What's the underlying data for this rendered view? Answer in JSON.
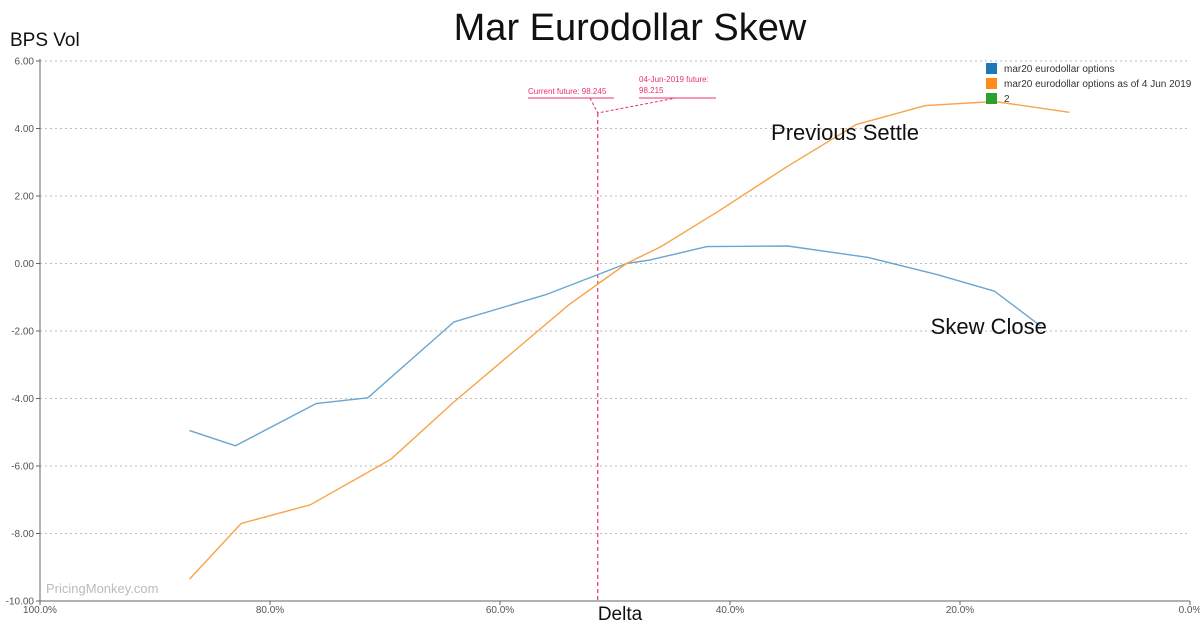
{
  "chart_data": {
    "type": "line",
    "title": "Mar Eurodollar Skew",
    "xlabel": "Delta",
    "ylabel": "BPS Vol",
    "xlim": [
      100,
      0
    ],
    "ylim": [
      -10,
      6
    ],
    "x_reversed": true,
    "grid": true,
    "legend_position": "top-right",
    "x_ticks": [
      "100.0%",
      "80.0%",
      "60.0%",
      "40.0%",
      "20.0%",
      "0.0%"
    ],
    "x_tick_values": [
      100,
      80,
      60,
      40,
      20,
      0
    ],
    "y_ticks": [
      "6.00",
      "4.00",
      "2.00",
      "0.00",
      "-2.00",
      "-4.00",
      "-6.00",
      "-8.00",
      "-10.00"
    ],
    "y_tick_values": [
      6,
      4,
      2,
      0,
      -2,
      -4,
      -6,
      -8,
      -10
    ],
    "series": [
      {
        "name": "mar20 eurodollar options",
        "color": "#6aa6cf",
        "legend_color": "#1f77b4",
        "x": [
          87,
          83,
          76,
          71.5,
          64,
          56,
          49,
          47,
          42,
          35,
          28,
          22,
          17,
          13
        ],
        "y": [
          -4.95,
          -5.4,
          -4.15,
          -3.98,
          -1.73,
          -0.92,
          0.0,
          0.1,
          0.5,
          0.52,
          0.18,
          -0.33,
          -0.82,
          -1.85
        ]
      },
      {
        "name": "mar20 eurodollar options as of 4 Jun 2019",
        "color": "#f7a44a",
        "legend_color": "#ff8c1a",
        "x": [
          87,
          82.5,
          76.5,
          69.5,
          64,
          54,
          49,
          46,
          41,
          35,
          29,
          23,
          17,
          10.5
        ],
        "y": [
          -9.35,
          -7.7,
          -7.15,
          -5.8,
          -4.1,
          -1.22,
          0.0,
          0.5,
          1.55,
          2.88,
          4.12,
          4.68,
          4.8,
          4.48
        ]
      },
      {
        "name": "2",
        "color": "#2ca02c",
        "legend_color": "#2ca02c",
        "x": [],
        "y": []
      }
    ],
    "vertical_marker": {
      "x": 51.5,
      "color": "#e8336d",
      "current_label": "Current future: 98.245",
      "prior_label_line1": "04-Jun-2019 future:",
      "prior_label_line2": "98.215"
    },
    "annotations": [
      {
        "text": "Previous Settle",
        "x": 30,
        "y": 3.9
      },
      {
        "text": "Skew Close",
        "x": 17.5,
        "y": -1.85
      }
    ],
    "watermark": "PricingMonkey.com"
  }
}
